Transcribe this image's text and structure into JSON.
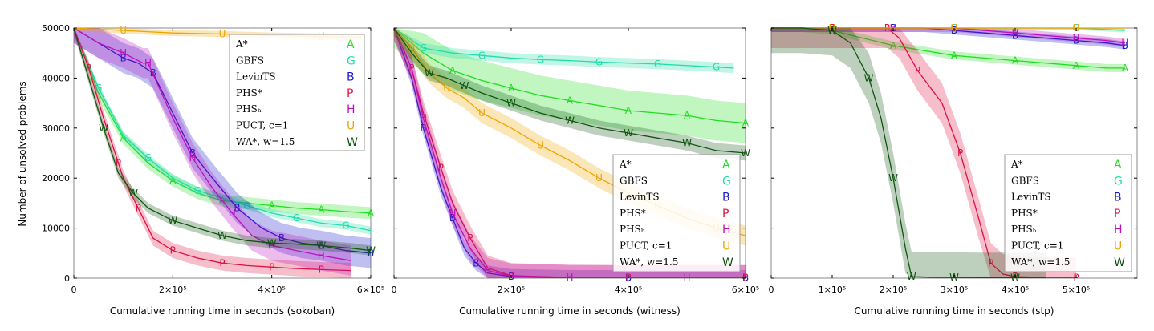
{
  "figure": {
    "yaxis_label": "Number of unsolved problems",
    "yticks": [
      "0",
      "10000",
      "20000",
      "30000",
      "40000",
      "50000"
    ],
    "legend": [
      {
        "name": "A*",
        "marker": "A",
        "color": "#22dd22"
      },
      {
        "name": "GBFS",
        "marker": "G",
        "color": "#22ddaa"
      },
      {
        "name": "LevinTS",
        "marker": "B",
        "color": "#1a1acc"
      },
      {
        "name": "PHS*",
        "marker": "P",
        "color": "#dd1144"
      },
      {
        "name": "PHSₕ",
        "marker": "H",
        "color": "#bb11bb"
      },
      {
        "name": "PUCT, c=1",
        "marker": "U",
        "color": "#f0a400"
      },
      {
        "name": "WA*, w=1.5",
        "marker": "W",
        "color": "#115511"
      }
    ]
  },
  "chart_data": [
    {
      "type": "line",
      "xlabel": "Cumulative running time in seconds (sokoban)",
      "ylabel": "Number of unsolved problems",
      "xlim": [
        0,
        600000
      ],
      "ylim": [
        0,
        50000
      ],
      "xticks": [
        {
          "v": 0,
          "t": "0"
        },
        {
          "v": 200000,
          "t": "2×10⁵"
        },
        {
          "v": 400000,
          "t": "4×10⁵"
        },
        {
          "v": 600000,
          "t": "6×10⁵"
        }
      ],
      "legend_position": "top-right",
      "series": [
        {
          "name": "A*",
          "x": [
            0,
            50000,
            100000,
            150000,
            200000,
            250000,
            300000,
            350000,
            400000,
            450000,
            500000,
            550000,
            600000
          ],
          "y": [
            50000,
            37000,
            28000,
            23000,
            19500,
            17000,
            15500,
            15000,
            14500,
            14000,
            13700,
            13300,
            13000
          ],
          "band": 1200
        },
        {
          "name": "GBFS",
          "x": [
            0,
            50000,
            100000,
            150000,
            200000,
            250000,
            300000,
            350000,
            400000,
            450000,
            500000,
            550000,
            600000
          ],
          "y": [
            50000,
            38000,
            28500,
            24000,
            20000,
            17500,
            16000,
            14500,
            13000,
            12000,
            11000,
            10500,
            9500
          ],
          "band": 800
        },
        {
          "name": "LevinTS",
          "x": [
            0,
            50000,
            100000,
            130000,
            160000,
            200000,
            240000,
            280000,
            330000,
            380000,
            420000,
            460000,
            500000,
            550000,
            600000
          ],
          "y": [
            50000,
            47000,
            44000,
            43000,
            41000,
            33000,
            25000,
            20000,
            14000,
            10000,
            8000,
            7000,
            6500,
            5500,
            5000
          ],
          "band": 3000
        },
        {
          "name": "PHS*",
          "x": [
            0,
            30000,
            60000,
            90000,
            100000,
            130000,
            160000,
            200000,
            250000,
            300000,
            350000,
            400000,
            450000,
            500000,
            560000
          ],
          "y": [
            50000,
            42000,
            32000,
            23000,
            20000,
            14000,
            8000,
            5500,
            4000,
            3000,
            2500,
            2200,
            1900,
            1700,
            1500
          ],
          "band": 1500
        },
        {
          "name": "PHSₕ",
          "x": [
            0,
            50000,
            100000,
            140000,
            150000,
            200000,
            240000,
            280000,
            320000,
            360000,
            400000,
            450000,
            500000,
            560000
          ],
          "y": [
            50000,
            47000,
            45000,
            43000,
            43000,
            32000,
            24000,
            18000,
            13000,
            8500,
            6500,
            5500,
            4500,
            3500
          ],
          "band": 3000
        },
        {
          "name": "PUCT, c=1",
          "x": [
            0,
            100000,
            200000,
            300000,
            400000,
            500000,
            580000
          ],
          "y": [
            50000,
            49500,
            49000,
            48800,
            48500,
            48300,
            48200
          ],
          "band": 600
        },
        {
          "name": "WA*, w=1.5",
          "x": [
            0,
            30000,
            60000,
            90000,
            120000,
            150000,
            200000,
            250000,
            300000,
            350000,
            400000,
            450000,
            500000,
            560000,
            600000
          ],
          "y": [
            50000,
            40000,
            30000,
            21000,
            17000,
            14000,
            11500,
            10000,
            8500,
            7500,
            7000,
            6800,
            6500,
            6000,
            5500
          ],
          "band": 1000
        }
      ]
    },
    {
      "type": "line",
      "xlabel": "Cumulative running time in seconds (witness)",
      "ylabel": "",
      "xlim": [
        0,
        600000
      ],
      "ylim": [
        0,
        50000
      ],
      "xticks": [
        {
          "v": 0,
          "t": "0"
        },
        {
          "v": 200000,
          "t": "2×10⁵"
        },
        {
          "v": 400000,
          "t": "4×10⁵"
        },
        {
          "v": 600000,
          "t": "6×10⁵"
        }
      ],
      "legend_position": "bottom-right",
      "series": [
        {
          "name": "A*",
          "x": [
            0,
            50000,
            100000,
            150000,
            200000,
            250000,
            300000,
            350000,
            400000,
            450000,
            500000,
            550000,
            600000
          ],
          "y": [
            50000,
            45000,
            41500,
            39500,
            38000,
            36500,
            35500,
            34500,
            33500,
            33000,
            32500,
            31500,
            31000
          ],
          "band": 4000
        },
        {
          "name": "GBFS",
          "x": [
            0,
            50000,
            100000,
            150000,
            200000,
            250000,
            300000,
            350000,
            400000,
            450000,
            500000,
            550000,
            580000
          ],
          "y": [
            50000,
            46000,
            45000,
            44500,
            44000,
            43700,
            43500,
            43200,
            43000,
            42800,
            42500,
            42200,
            42000
          ],
          "band": 1000
        },
        {
          "name": "LevinTS",
          "x": [
            0,
            30000,
            50000,
            80000,
            100000,
            120000,
            140000,
            160000,
            200000,
            300000,
            400000,
            500000,
            600000
          ],
          "y": [
            50000,
            40000,
            30000,
            18000,
            12000,
            6000,
            3000,
            1000,
            300,
            100,
            100,
            100,
            100
          ],
          "band": 1500
        },
        {
          "name": "PHS*",
          "x": [
            0,
            30000,
            50000,
            80000,
            100000,
            130000,
            160000,
            200000,
            300000,
            400000,
            500000,
            600000
          ],
          "y": [
            50000,
            42000,
            33000,
            22000,
            15000,
            8000,
            2000,
            500,
            150,
            100,
            100,
            100
          ],
          "band": 2500
        },
        {
          "name": "PHSₕ",
          "x": [
            0,
            30000,
            50000,
            80000,
            100000,
            130000,
            160000,
            200000,
            300000,
            400000,
            500000,
            600000
          ],
          "y": [
            50000,
            42000,
            32000,
            20000,
            13000,
            6000,
            1500,
            400,
            150,
            100,
            100,
            100
          ],
          "band": 2500
        },
        {
          "name": "PUCT, c=1",
          "x": [
            0,
            30000,
            60000,
            90000,
            120000,
            150000,
            200000,
            250000,
            300000,
            350000,
            400000,
            450000,
            500000,
            550000,
            600000
          ],
          "y": [
            50000,
            46000,
            41000,
            38000,
            36000,
            33000,
            30000,
            26500,
            23500,
            20000,
            17000,
            14500,
            12000,
            10000,
            8500
          ],
          "band": 2000
        },
        {
          "name": "WA*, w=1.5",
          "x": [
            0,
            30000,
            60000,
            90000,
            120000,
            150000,
            200000,
            250000,
            300000,
            350000,
            400000,
            450000,
            500000,
            550000,
            600000
          ],
          "y": [
            50000,
            45000,
            41000,
            40000,
            38500,
            37000,
            35000,
            33000,
            31500,
            30000,
            29000,
            28000,
            27000,
            25500,
            25000
          ],
          "band": 1500
        }
      ]
    },
    {
      "type": "line",
      "xlabel": "Cumulative running time in seconds (stp)",
      "ylabel": "",
      "xlim": [
        0,
        600000
      ],
      "ylim": [
        0,
        50000
      ],
      "xticks": [
        {
          "v": 0,
          "t": "0"
        },
        {
          "v": 100000,
          "t": "1×10⁵"
        },
        {
          "v": 200000,
          "t": "2×10⁵"
        },
        {
          "v": 300000,
          "t": "3×10⁵"
        },
        {
          "v": 400000,
          "t": "4×10⁵"
        },
        {
          "v": 500000,
          "t": "5×10⁵"
        }
      ],
      "legend_position": "bottom-right",
      "series": [
        {
          "name": "A*",
          "x": [
            0,
            50000,
            100000,
            150000,
            200000,
            250000,
            300000,
            350000,
            400000,
            450000,
            500000,
            550000,
            580000
          ],
          "y": [
            50000,
            50000,
            49500,
            48000,
            46500,
            45500,
            44500,
            44000,
            43500,
            43000,
            42500,
            42000,
            42000
          ],
          "band": 800
        },
        {
          "name": "GBFS",
          "x": [
            0,
            100000,
            200000,
            300000,
            400000,
            500000,
            580000
          ],
          "y": [
            50000,
            50000,
            50000,
            50000,
            50000,
            50000,
            49500
          ],
          "band": 400
        },
        {
          "name": "LevinTS",
          "x": [
            0,
            50000,
            100000,
            150000,
            200000,
            250000,
            300000,
            350000,
            400000,
            450000,
            500000,
            550000,
            580000
          ],
          "y": [
            50000,
            50000,
            50000,
            50000,
            50000,
            50000,
            49500,
            49000,
            48500,
            48000,
            47500,
            47000,
            46500
          ],
          "band": 800
        },
        {
          "name": "PHS*",
          "x": [
            0,
            100000,
            150000,
            190000,
            210000,
            240000,
            280000,
            310000,
            340000,
            360000,
            380000,
            400000,
            450000,
            500000
          ],
          "y": [
            50000,
            50000,
            50000,
            50000,
            48000,
            41500,
            35000,
            25000,
            12000,
            3000,
            800,
            300,
            150,
            100
          ],
          "band": 4000
        },
        {
          "name": "PHSₕ",
          "x": [
            0,
            100000,
            200000,
            300000,
            400000,
            450000,
            500000,
            550000,
            580000
          ],
          "y": [
            50000,
            50000,
            50000,
            50000,
            49000,
            48500,
            48000,
            47500,
            47000
          ],
          "band": 800
        },
        {
          "name": "PUCT, c=1",
          "x": [
            0,
            100000,
            200000,
            300000,
            400000,
            500000,
            580000
          ],
          "y": [
            50000,
            50000,
            50000,
            50000,
            50000,
            50000,
            50000
          ],
          "band": 300
        },
        {
          "name": "WA*, w=1.5",
          "x": [
            0,
            50000,
            100000,
            130000,
            160000,
            180000,
            200000,
            220000,
            230000,
            260000,
            300000,
            350000,
            400000,
            450000
          ],
          "y": [
            50000,
            50000,
            49500,
            47000,
            40000,
            32000,
            20000,
            6000,
            300,
            200,
            150,
            100,
            100,
            100
          ],
          "band": 5000
        }
      ]
    }
  ]
}
